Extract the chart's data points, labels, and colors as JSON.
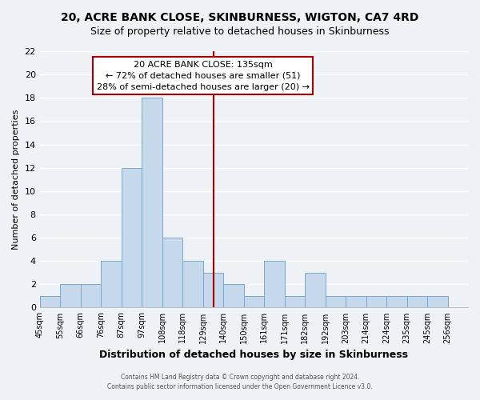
{
  "title": "20, ACRE BANK CLOSE, SKINBURNESS, WIGTON, CA7 4RD",
  "subtitle": "Size of property relative to detached houses in Skinburness",
  "xlabel": "Distribution of detached houses by size in Skinburness",
  "ylabel": "Number of detached properties",
  "bar_color": "#c5d8ec",
  "bar_edge_color": "#7aaac8",
  "bin_labels": [
    "45sqm",
    "55sqm",
    "66sqm",
    "76sqm",
    "87sqm",
    "97sqm",
    "108sqm",
    "118sqm",
    "129sqm",
    "140sqm",
    "150sqm",
    "161sqm",
    "171sqm",
    "182sqm",
    "192sqm",
    "203sqm",
    "214sqm",
    "224sqm",
    "235sqm",
    "245sqm",
    "256sqm"
  ],
  "bin_edges": [
    45,
    55,
    66,
    76,
    87,
    97,
    108,
    118,
    129,
    140,
    150,
    161,
    171,
    182,
    192,
    203,
    214,
    224,
    235,
    245,
    256
  ],
  "counts": [
    1,
    2,
    2,
    4,
    12,
    18,
    6,
    4,
    3,
    2,
    1,
    4,
    1,
    3,
    1,
    1,
    1,
    1,
    1,
    1,
    0
  ],
  "property_size": 135,
  "property_line_color": "#aa0000",
  "annotation_title": "20 ACRE BANK CLOSE: 135sqm",
  "annotation_line1": "← 72% of detached houses are smaller (51)",
  "annotation_line2": "28% of semi-detached houses are larger (20) →",
  "annotation_box_color": "#ffffff",
  "annotation_box_edge_color": "#aa0000",
  "ylim": [
    0,
    22
  ],
  "yticks": [
    0,
    2,
    4,
    6,
    8,
    10,
    12,
    14,
    16,
    18,
    20,
    22
  ],
  "footer1": "Contains HM Land Registry data © Crown copyright and database right 2024.",
  "footer2": "Contains public sector information licensed under the Open Government Licence v3.0.",
  "background_color": "#eef2f7"
}
